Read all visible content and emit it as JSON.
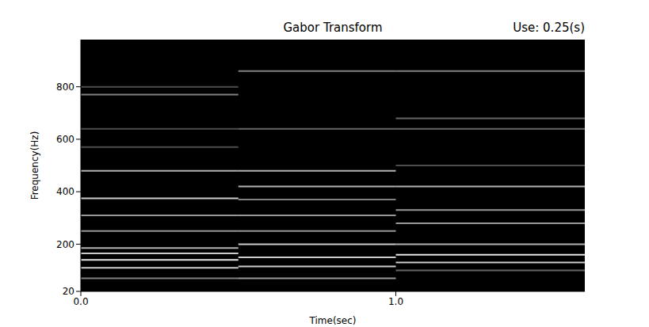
{
  "chart_data": {
    "type": "spectrogram",
    "title": "Gabor Transform",
    "subtitle": "Use: 0.25(s)",
    "x_label": "Time(sec)",
    "y_label": "Frequency(Hz)",
    "xlim": [
      0,
      1.6
    ],
    "ylim": [
      20,
      980
    ],
    "xticks": [
      {
        "value": 0,
        "label": "0.0"
      },
      {
        "value": 1,
        "label": "1.0"
      }
    ],
    "yticks": [
      20,
      200,
      400,
      600,
      800
    ],
    "grid": false,
    "color": "#ffffff",
    "segments": [
      {
        "t": [
          0,
          0.5
        ],
        "frequencies": [
          70,
          110,
          140,
          165,
          185,
          250,
          310,
          375,
          480,
          570,
          640,
          770,
          800
        ],
        "intensity": [
          0.5,
          0.8,
          0.9,
          0.8,
          0.7,
          0.6,
          0.6,
          0.8,
          0.7,
          0.3,
          0.3,
          0.5,
          0.3
        ]
      },
      {
        "t": [
          0.5,
          1.0
        ],
        "frequencies": [
          70,
          115,
          150,
          200,
          250,
          310,
          370,
          420,
          480,
          640,
          860
        ],
        "intensity": [
          0.6,
          0.8,
          0.8,
          0.8,
          0.6,
          0.6,
          0.5,
          0.7,
          0.7,
          0.4,
          0.5
        ]
      },
      {
        "t": [
          1.0,
          1.6
        ],
        "frequencies": [
          100,
          130,
          160,
          200,
          280,
          330,
          420,
          500,
          640,
          680,
          860
        ],
        "intensity": [
          0.4,
          0.8,
          0.9,
          0.7,
          0.6,
          0.6,
          0.7,
          0.3,
          0.4,
          0.4,
          0.5
        ]
      }
    ]
  }
}
